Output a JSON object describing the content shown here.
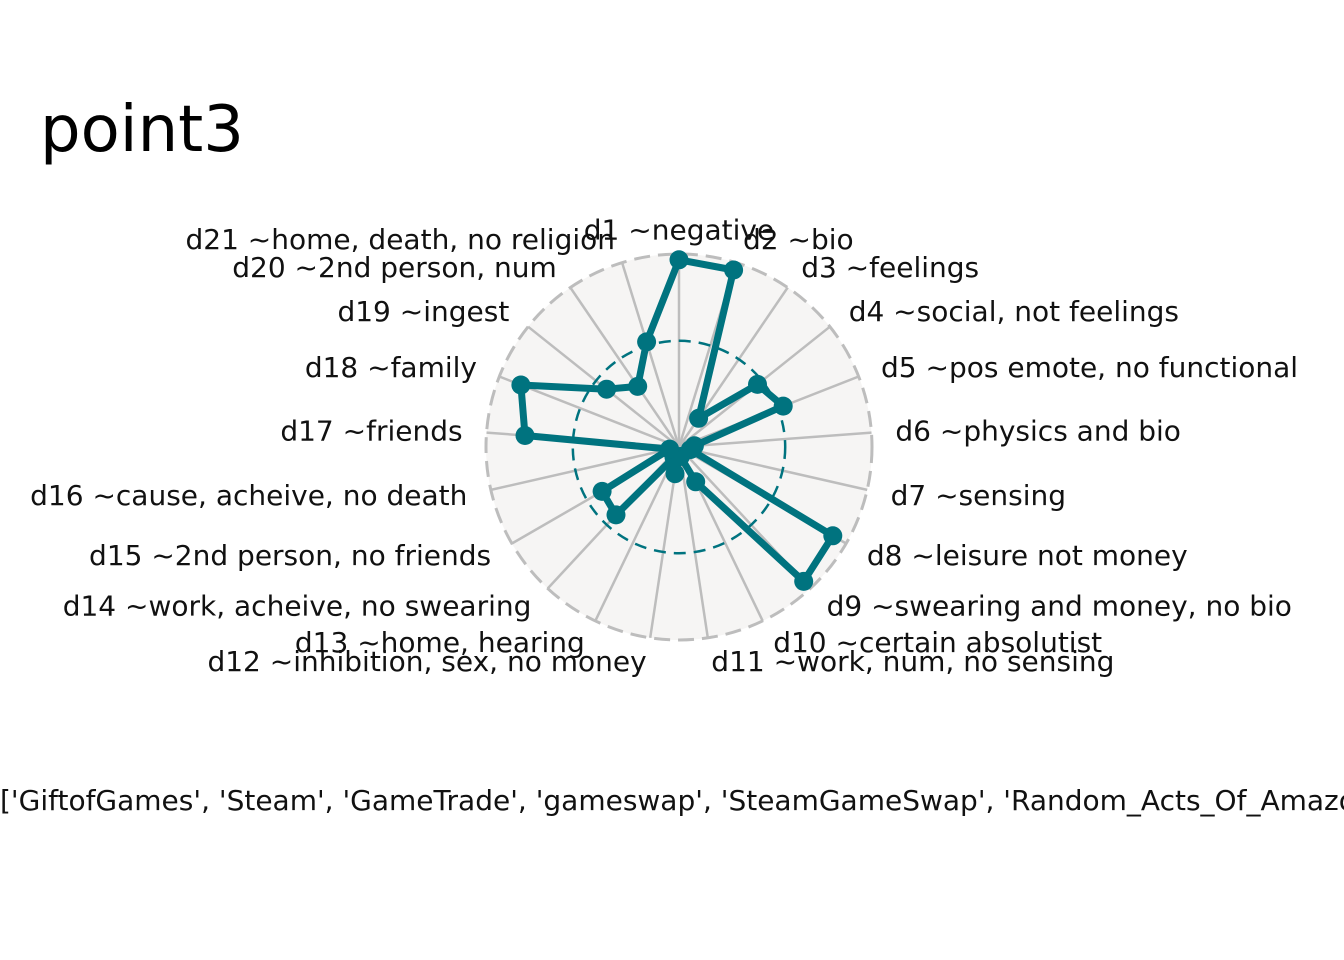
{
  "chart_data": {
    "type": "radar",
    "title": "point3",
    "caption": "['GiftofGames', 'Steam', 'GameTrade', 'gameswap', 'SteamGameSwap', 'Random_Acts_Of_Amazon', 'giftcardexchange', 'csgo_trading', 'soccer', 'csgotrade', 'SteamGameSwap', 'indiegameswap', 'RocketLeagueExchange', 'GlobalOffensiveTrade']",
    "categories": [
      "d1 ~negative",
      "d2 ~bio",
      "d3 ~feelings",
      "d4 ~social, not feelings",
      "d5 ~pos emote, no functional",
      "d6 ~physics and bio",
      "d7 ~sensing",
      "d8 ~leisure not money",
      "d9 ~swearing and money, no bio",
      "d10 ~certain absolutist",
      "d11 ~work, num, no sensing",
      "d12 ~inhibition, sex, no money",
      "d13 ~home, hearing",
      "d14 ~work, acheive, no swearing",
      "d15 ~2nd person, no friends",
      "d16 ~cause, acheive, no death",
      "d17 ~friends",
      "d18 ~family",
      "d19 ~ingest",
      "d20 ~2nd person, num",
      "d21 ~home, death, no religion"
    ],
    "series": [
      {
        "name": "",
        "values": [
          0.97,
          0.96,
          0.18,
          0.52,
          0.58,
          0.08,
          0.06,
          0.92,
          0.95,
          0.2,
          0.05,
          0.14,
          0.06,
          0.48,
          0.46,
          0.05,
          0.8,
          0.88,
          0.48,
          0.38,
          0.57
        ]
      }
    ],
    "rlim": [
      0,
      1
    ],
    "reference_ring": 0.55,
    "grid": true,
    "legend": "none",
    "colors": {
      "series": "#00737f",
      "reference_ring": "#00737f",
      "grid": "#bdbdbd",
      "background": "#f6f5f4",
      "outer_ring": "#bdbdbd"
    }
  }
}
